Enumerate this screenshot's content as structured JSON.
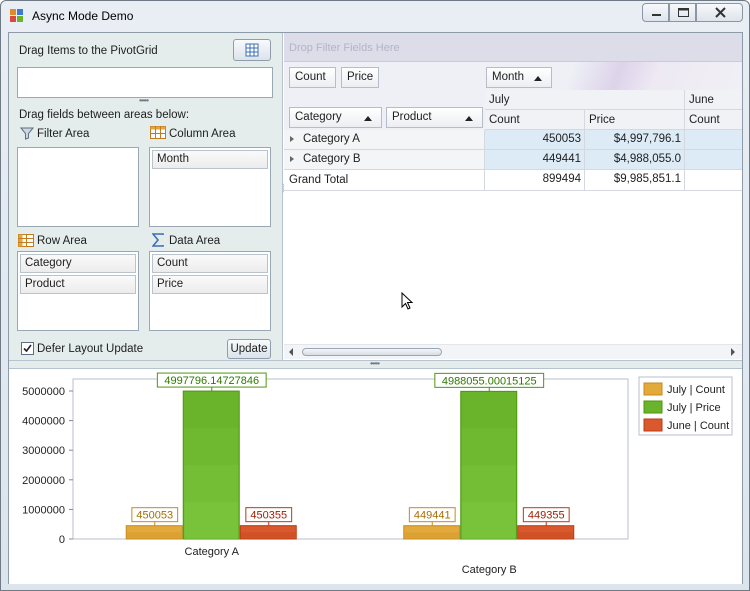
{
  "window": {
    "title": "Async Mode Demo"
  },
  "fieldlist": {
    "drag_items_label": "Drag Items to the PivotGrid",
    "drag_fields_label": "Drag fields between areas below:",
    "filter_area_label": "Filter Area",
    "column_area_label": "Column Area",
    "row_area_label": "Row Area",
    "data_area_label": "Data Area",
    "column_fields": [
      "Month"
    ],
    "row_fields": [
      "Category",
      "Product"
    ],
    "data_fields": [
      "Count",
      "Price"
    ],
    "defer_label": "Defer Layout Update",
    "defer_checked": true,
    "update_button": "Update"
  },
  "pivot": {
    "filter_placeholder": "Drop Filter Fields Here",
    "data_headers": [
      "Count",
      "Price"
    ],
    "column_field": "Month",
    "row_fields": [
      "Category",
      "Product"
    ],
    "months": [
      "July",
      "June"
    ],
    "measure_headers": [
      "Count",
      "Price",
      "Count"
    ],
    "rows": [
      {
        "label": "Category A",
        "count": "450053",
        "price": "$4,997,796.1"
      },
      {
        "label": "Category B",
        "count": "449441",
        "price": "$4,988,055.0"
      }
    ],
    "grand_total": {
      "label": "Grand Total",
      "count": "899494",
      "price": "$9,985,851.1"
    }
  },
  "chart_data": {
    "type": "bar",
    "categories": [
      "Category A",
      "Category B"
    ],
    "series": [
      {
        "name": "July | Count",
        "values": [
          450053,
          449441
        ],
        "labels": [
          "450053",
          "449441"
        ],
        "color": "#e3a93a"
      },
      {
        "name": "July | Price",
        "values": [
          4997796.14727846,
          4988055.00015125
        ],
        "labels": [
          "4997796.14727846",
          "4988055.00015125"
        ],
        "color": "#6ab42c"
      },
      {
        "name": "June | Count",
        "values": [
          450355,
          449355
        ],
        "labels": [
          "450355",
          "449355"
        ],
        "color": "#d9582e"
      }
    ],
    "yticks": [
      "0",
      "1000000",
      "2000000",
      "3000000",
      "4000000",
      "5000000"
    ],
    "ylim": [
      0,
      5000000
    ],
    "legend_position": "top-right"
  },
  "colors": {
    "accent": "#6ab42c",
    "selection": "#dcebf6"
  }
}
